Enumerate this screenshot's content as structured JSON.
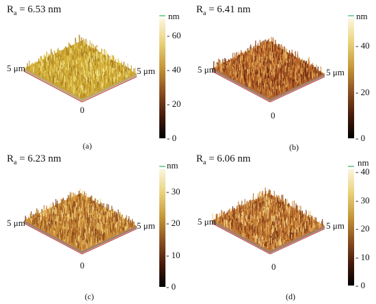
{
  "panels": [
    {
      "label": "(a)",
      "ra_prefix": "R",
      "ra_sub": "a",
      "ra_value": " = 6.53 nm",
      "unit": "nm",
      "ticks": [
        "60",
        "40",
        "20",
        "0"
      ],
      "tick_max": 70,
      "tick_vals": [
        60,
        40,
        20,
        0
      ],
      "axis_left": "5 μm",
      "axis_right": "5 μm",
      "axis_origin": "0",
      "palette": [
        "#c8a230",
        "#e2c650",
        "#f1e48a",
        "#a87c22",
        "#d9b640"
      ]
    },
    {
      "label": "(b)",
      "ra_prefix": "R",
      "ra_sub": "a",
      "ra_value": " = 6.41 nm",
      "unit": "nm",
      "ticks": [
        "40",
        "20",
        "0"
      ],
      "tick_max": 52,
      "tick_vals": [
        40,
        20,
        0
      ],
      "axis_left": "5 μm",
      "axis_right": "5 μm",
      "axis_origin": "0",
      "palette": [
        "#b5652a",
        "#8a3f1c",
        "#d7903f",
        "#6e2a12",
        "#e2b060"
      ]
    },
    {
      "label": "(c)",
      "ra_prefix": "R",
      "ra_sub": "a",
      "ra_value": " = 6.23 nm",
      "unit": "nm",
      "ticks": [
        "30",
        "20",
        "10",
        "0"
      ],
      "tick_max": 37,
      "tick_vals": [
        30,
        20,
        10,
        0
      ],
      "axis_left": "5 μm",
      "axis_right": "5 μm",
      "axis_origin": "0",
      "palette": [
        "#c98a35",
        "#e0b055",
        "#a8642a",
        "#f0d488",
        "#8a4a1f"
      ]
    },
    {
      "label": "(d)",
      "ra_prefix": "R",
      "ra_sub": "a",
      "ra_value": " = 6.06 nm",
      "unit": "nm",
      "ticks": [
        "40",
        "30",
        "20",
        "10",
        "0"
      ],
      "tick_max": 41,
      "tick_vals": [
        40,
        30,
        20,
        10,
        0
      ],
      "axis_left": "5 μm",
      "axis_right": "5 μm",
      "axis_origin": "0",
      "palette": [
        "#c27a33",
        "#9c4f22",
        "#e0a652",
        "#f2cf85",
        "#7a3617"
      ]
    }
  ]
}
